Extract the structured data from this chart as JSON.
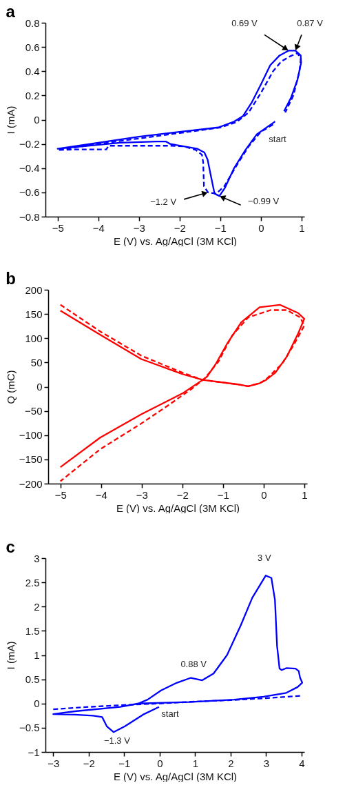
{
  "chart_data": [
    {
      "type": "line",
      "title": "a",
      "xlabel": "E (V) vs. Ag/AgCl (3M KCl)",
      "ylabel": "I (mA)",
      "xlim": [
        -5.3,
        1.07
      ],
      "ylim": [
        -0.8,
        0.8
      ],
      "xticks": [
        -5,
        -4,
        -3,
        -2,
        -1,
        0,
        1
      ],
      "yticks": [
        -0.8,
        -0.6,
        -0.4,
        -0.2,
        0,
        0.2,
        0.4,
        0.6,
        0.8
      ],
      "grid": false,
      "series": [
        {
          "color": "#0000ff",
          "line_style": "solid",
          "x": [
            0.35,
            -0.1,
            -0.38,
            -0.66,
            -0.88,
            -1.02,
            -1.14,
            -1.22,
            -1.31,
            -1.39,
            -1.56,
            -2.23,
            -2.34,
            -2.57,
            -3.46,
            -5,
            -4,
            -3,
            -2,
            -1.05,
            -0.66,
            -0.44,
            -0.22,
            0,
            0.23,
            0.46,
            0.68,
            0.85,
            0.98,
            0.99,
            0.9,
            0.74,
            0.57
          ],
          "values": [
            -0.015,
            -0.12,
            -0.25,
            -0.4,
            -0.56,
            -0.63,
            -0.61,
            -0.48,
            -0.33,
            -0.27,
            -0.24,
            -0.2,
            -0.18,
            -0.18,
            -0.19,
            -0.24,
            -0.19,
            -0.14,
            -0.1,
            -0.064,
            -0.016,
            0.03,
            0.145,
            0.29,
            0.45,
            0.53,
            0.57,
            0.57,
            0.53,
            0.47,
            0.33,
            0.18,
            0.07
          ]
        },
        {
          "color": "#0000ff",
          "line_style": "dashed",
          "x": [
            0.3,
            0,
            -0.3,
            -0.6,
            -0.9,
            -1.1,
            -1.3,
            -1.4,
            -1.42,
            -1.45,
            -1.6,
            -1.9,
            -2.2,
            -3,
            -3.75,
            -3.8,
            -4.5,
            -5,
            -4,
            -3,
            -2,
            -1,
            -0.6,
            -0.3,
            0,
            0.3,
            0.5,
            0.7,
            0.9,
            0.98,
            0.95,
            0.8,
            0.6
          ],
          "values": [
            -0.04,
            -0.1,
            -0.22,
            -0.38,
            -0.55,
            -0.61,
            -0.6,
            -0.55,
            -0.35,
            -0.29,
            -0.25,
            -0.22,
            -0.215,
            -0.215,
            -0.215,
            -0.245,
            -0.245,
            -0.25,
            -0.2,
            -0.155,
            -0.11,
            -0.065,
            -0.02,
            0.06,
            0.22,
            0.4,
            0.48,
            0.52,
            0.55,
            0.5,
            0.4,
            0.2,
            0.06
          ]
        }
      ],
      "annotations": [
        {
          "text": "0.69 V",
          "x": 0.68,
          "y": 0.57
        },
        {
          "text": "0.87 V",
          "x": 0.85,
          "y": 0.57
        },
        {
          "text": "−1.2 V",
          "x": -1.3,
          "y": -0.6
        },
        {
          "text": "−0.99 V",
          "x": -1.02,
          "y": -0.63
        },
        "start"
      ]
    },
    {
      "type": "line",
      "title": "b",
      "xlabel": "E (V) vs. Ag/AgCl (3M KCl)",
      "ylabel": "Q (mC)",
      "xlim": [
        -5.3,
        1.07
      ],
      "ylim": [
        -200,
        200
      ],
      "xticks": [
        -5,
        -4,
        -3,
        -2,
        -1,
        0,
        1
      ],
      "yticks": [
        -200,
        -150,
        -100,
        -50,
        0,
        50,
        100,
        150,
        200
      ],
      "grid": false,
      "series": [
        {
          "color": "#ff0000",
          "line_style": "solid",
          "x": [
            -5,
            -4.02,
            -3.01,
            -2,
            -1.5,
            -0.66,
            -0.38,
            -0.1,
            0.06,
            0.29,
            0.57,
            0.85,
            1,
            0.85,
            0.4,
            -0.1,
            -0.55,
            -0.89,
            -1.17,
            -1.39,
            -1.5,
            -2,
            -3.01,
            -4.02,
            -5
          ],
          "values": [
            157,
            107,
            57,
            26,
            14,
            5,
            1,
            7,
            14,
            29,
            62,
            110,
            140,
            152,
            169,
            164,
            133,
            90,
            48,
            21,
            14,
            -14,
            -57,
            -105,
            -166
          ]
        },
        {
          "color": "#ff0000",
          "line_style": "dashed",
          "x": [
            -5,
            -4.02,
            -3.01,
            -2,
            -1.5,
            -0.66,
            -0.38,
            -0.1,
            0.06,
            0.46,
            0.74,
            1,
            0.9,
            0.57,
            0.17,
            -0.38,
            -0.78,
            -1.11,
            -1.45,
            -1.78,
            -2.34,
            -3.01,
            -4.02,
            -5
          ],
          "values": [
            169,
            114,
            64,
            29,
            14,
            5,
            1,
            7,
            15,
            48,
            86,
            126,
            143,
            158,
            158,
            143,
            105,
            52,
            17,
            -5,
            -38,
            -76,
            -129,
            -195
          ]
        }
      ]
    },
    {
      "type": "line",
      "title": "c",
      "xlabel": "E (V) vs. Ag/AgCl (3M KCl)",
      "ylabel": "I (mA)",
      "xlim": [
        -3.22,
        4.08
      ],
      "ylim": [
        -1,
        3
      ],
      "xticks": [
        -3,
        -2,
        -1,
        0,
        1,
        2,
        3,
        4
      ],
      "yticks": [
        -1,
        -0.5,
        0,
        0.5,
        1,
        1.5,
        2,
        2.5,
        3
      ],
      "grid": false,
      "series": [
        {
          "color": "#0000ff",
          "line_style": "solid",
          "x": [
            -0.02,
            -0.47,
            -0.98,
            -1.3,
            -1.49,
            -1.62,
            -1.88,
            -2.39,
            -3,
            -2.39,
            -1.11,
            -0.6,
            -0.34,
            0.04,
            0.49,
            0.88,
            1.2,
            1.52,
            1.9,
            2.29,
            2.61,
            2.99,
            3.15,
            3.25,
            3.31,
            3.38,
            3.44,
            3.57,
            3.83,
            3.92,
            3.96,
            4.02,
            3.89,
            3.57,
            2.93,
            2.1,
            0.82,
            -0.6
          ],
          "values": [
            -0.07,
            -0.23,
            -0.47,
            -0.59,
            -0.47,
            -0.28,
            -0.25,
            -0.23,
            -0.22,
            -0.16,
            -0.07,
            0,
            0.08,
            0.27,
            0.43,
            0.53,
            0.48,
            0.62,
            1,
            1.62,
            2.18,
            2.64,
            2.59,
            2.14,
            1.19,
            0.72,
            0.69,
            0.73,
            0.72,
            0.67,
            0.53,
            0.43,
            0.34,
            0.22,
            0.14,
            0.08,
            0.03,
            0
          ]
        },
        {
          "color": "#0000ff",
          "line_style": "dashed",
          "x": [
            -3,
            -2,
            -1,
            0,
            1,
            2,
            3,
            4
          ],
          "values": [
            -0.12,
            -0.07,
            -0.03,
            0,
            0.04,
            0.07,
            0.11,
            0.16
          ]
        }
      ],
      "annotations": [
        {
          "text": "3 V",
          "x": 2.99,
          "y": 2.64
        },
        {
          "text": "0.88 V",
          "x": 0.88,
          "y": 0.53
        },
        {
          "text": "−1.3 V",
          "x": -1.3,
          "y": -0.59
        },
        "start"
      ]
    }
  ]
}
